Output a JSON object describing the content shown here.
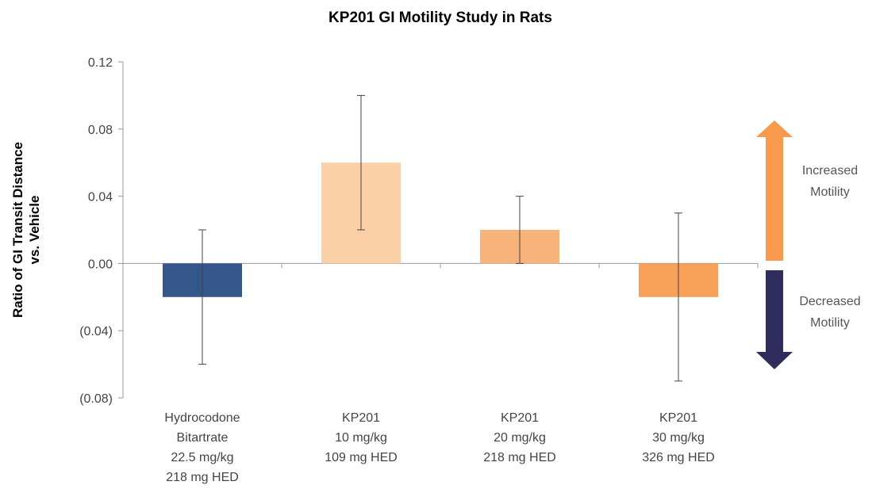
{
  "chart_data": {
    "type": "bar",
    "title": "KP201 GI Motility Study in Rats",
    "ylabel_lines": [
      "Ratio of GI Transit Distance",
      "vs. Vehicle"
    ],
    "xlabel": "",
    "ylim": [
      -0.08,
      0.12
    ],
    "yticks": [
      0.12,
      0.08,
      0.04,
      0.0,
      -0.04,
      -0.08
    ],
    "ytick_labels": [
      "0.12",
      "0.08",
      "0.04",
      "0.00",
      "(0.04)",
      "(0.08)"
    ],
    "categories": [
      [
        "Hydrocodone",
        "Bitartrate",
        "22.5 mg/kg",
        "218 mg HED"
      ],
      [
        "KP201",
        "10 mg/kg",
        "109 mg HED"
      ],
      [
        "KP201",
        "20 mg/kg",
        "218 mg HED"
      ],
      [
        "KP201",
        "30 mg/kg",
        "326 mg HED"
      ]
    ],
    "values": [
      -0.02,
      0.06,
      0.02,
      -0.02
    ],
    "error_low": [
      -0.06,
      0.02,
      0.0,
      -0.07
    ],
    "error_high": [
      0.02,
      0.1,
      0.04,
      0.03
    ],
    "bar_colors": [
      "#34568a",
      "#fbd0a6",
      "#f8b37a",
      "#f7a05a"
    ],
    "grid": false,
    "annotations": {
      "increased": {
        "lines": [
          "Increased",
          "Motility"
        ],
        "color": "#f79a4e"
      },
      "decreased": {
        "lines": [
          "Decreased",
          "Motility"
        ],
        "color": "#2e2d5c"
      }
    }
  }
}
